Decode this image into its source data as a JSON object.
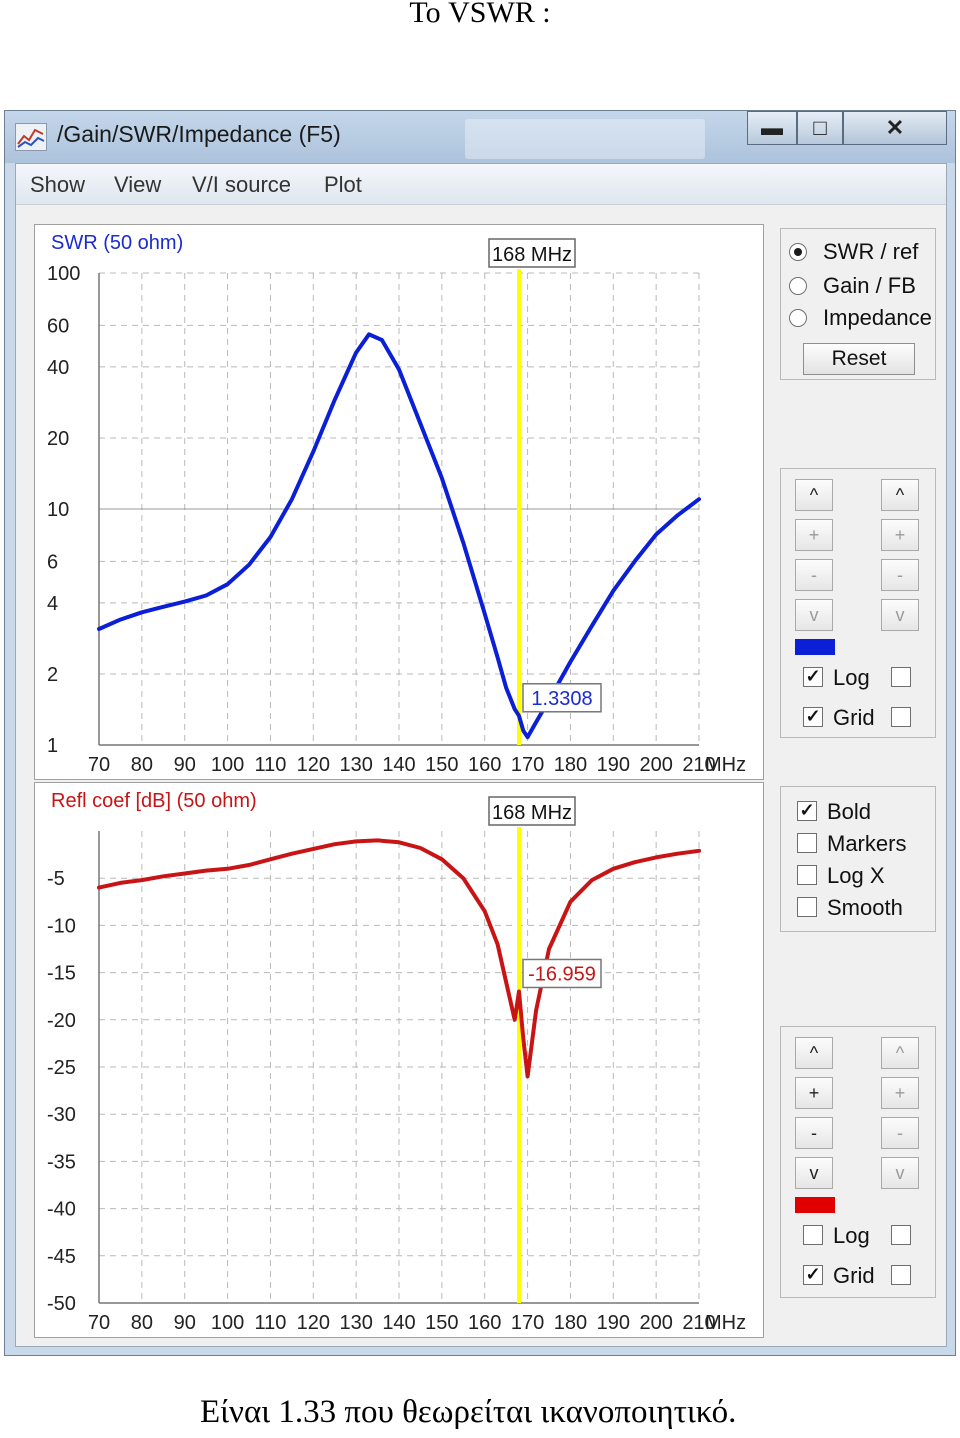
{
  "page": {
    "heading": "Το VSWR :",
    "caption": "Είναι 1.33 που θεωρείται ικανοποιητικό."
  },
  "window": {
    "title": "/Gain/SWR/Impedance (F5)",
    "controls": {
      "minimize": "▬",
      "maximize": "□",
      "close": "✕"
    },
    "menu": [
      "Show",
      "View",
      "V/I source",
      "Plot"
    ]
  },
  "side": {
    "modes": [
      {
        "label": "SWR / ref",
        "selected": true
      },
      {
        "label": "Gain / FB",
        "selected": false
      },
      {
        "label": "Impedance",
        "selected": false
      }
    ],
    "reset_label": "Reset",
    "top_controls": {
      "buttons": [
        "^",
        "+",
        "-",
        "v"
      ],
      "color": "#0a1fd6",
      "log": {
        "label": "Log",
        "checked": true
      },
      "grid": {
        "label": "Grid",
        "checked": true
      }
    },
    "options": [
      {
        "label": "Bold",
        "checked": true
      },
      {
        "label": "Markers",
        "checked": false
      },
      {
        "label": "Log X",
        "checked": false
      },
      {
        "label": "Smooth",
        "checked": false
      }
    ],
    "bottom_controls": {
      "buttons": [
        "^",
        "+",
        "-",
        "v"
      ],
      "color": "#e00000",
      "log": {
        "label": "Log",
        "checked": false
      },
      "grid": {
        "label": "Grid",
        "checked": true
      }
    }
  },
  "chart_data": [
    {
      "type": "line",
      "title": "SWR (50 ohm)",
      "x_unit": "MHz",
      "x_ticks": [
        70,
        80,
        90,
        100,
        110,
        120,
        130,
        140,
        150,
        160,
        170,
        180,
        190,
        200,
        210
      ],
      "xlim": [
        70,
        210
      ],
      "y_scale": "log",
      "ylim": [
        1,
        100
      ],
      "y_ticks": [
        1,
        2,
        4,
        6,
        10,
        20,
        40,
        60,
        100
      ],
      "grid": true,
      "marker": {
        "x": 168,
        "label": "168 MHz",
        "value_label": "1.3308",
        "color": "#ffff00"
      },
      "series": [
        {
          "color": "#0a1fd6",
          "x": [
            70,
            75,
            80,
            85,
            90,
            95,
            100,
            105,
            110,
            115,
            120,
            125,
            130,
            133,
            136,
            140,
            145,
            150,
            155,
            160,
            163,
            165,
            167,
            168,
            169,
            170,
            172,
            175,
            180,
            185,
            190,
            195,
            200,
            205,
            210
          ],
          "y": [
            3.1,
            3.4,
            3.65,
            3.85,
            4.05,
            4.3,
            4.8,
            5.8,
            7.6,
            11,
            17.5,
            29,
            46,
            55,
            52,
            39,
            23,
            13.5,
            7.2,
            3.6,
            2.35,
            1.75,
            1.42,
            1.33,
            1.15,
            1.08,
            1.25,
            1.55,
            2.25,
            3.2,
            4.5,
            6.0,
            7.8,
            9.4,
            11
          ]
        }
      ]
    },
    {
      "type": "line",
      "title": "Refl coef [dB] (50 ohm)",
      "x_unit": "MHz",
      "x_ticks": [
        70,
        80,
        90,
        100,
        110,
        120,
        130,
        140,
        150,
        160,
        170,
        180,
        190,
        200,
        210
      ],
      "xlim": [
        70,
        210
      ],
      "ylim": [
        -50,
        0
      ],
      "y_ticks": [
        -5,
        -10,
        -15,
        -20,
        -25,
        -30,
        -35,
        -40,
        -45,
        -50
      ],
      "grid": true,
      "marker": {
        "x": 168,
        "label": "168 MHz",
        "value_label": "-16.959",
        "color": "#ffff00"
      },
      "series": [
        {
          "color": "#c81414",
          "x": [
            70,
            75,
            80,
            85,
            90,
            95,
            100,
            105,
            110,
            115,
            120,
            125,
            130,
            135,
            140,
            145,
            150,
            155,
            160,
            163,
            165,
            167,
            168,
            169,
            170,
            172,
            175,
            180,
            185,
            190,
            195,
            200,
            205,
            210
          ],
          "y": [
            -6.0,
            -5.5,
            -5.2,
            -4.8,
            -4.5,
            -4.2,
            -4.0,
            -3.6,
            -3.0,
            -2.4,
            -1.9,
            -1.4,
            -1.1,
            -1.0,
            -1.2,
            -1.8,
            -3.0,
            -5.0,
            -8.5,
            -12.0,
            -16.0,
            -20.0,
            -17.0,
            -22.0,
            -26.0,
            -19.0,
            -12.5,
            -7.5,
            -5.2,
            -4.0,
            -3.3,
            -2.8,
            -2.4,
            -2.1
          ]
        }
      ]
    }
  ]
}
